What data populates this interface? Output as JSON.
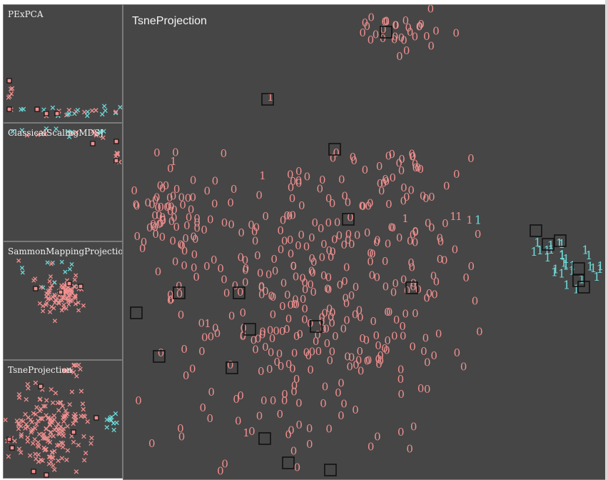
{
  "colors": {
    "background": "#464646",
    "class_0": "#f08f8f",
    "class_1": "#6fd8d8",
    "selected_box": "#111111"
  },
  "thumbnails": [
    {
      "title": "PExPCA"
    },
    {
      "title": "ClassicalScalingMDSJ"
    },
    {
      "title": "SammonMappingProjection"
    },
    {
      "title": "TsneProjection"
    }
  ],
  "main": {
    "title": "TsneProjection",
    "label_class_0": "0",
    "label_class_1": "1"
  }
}
